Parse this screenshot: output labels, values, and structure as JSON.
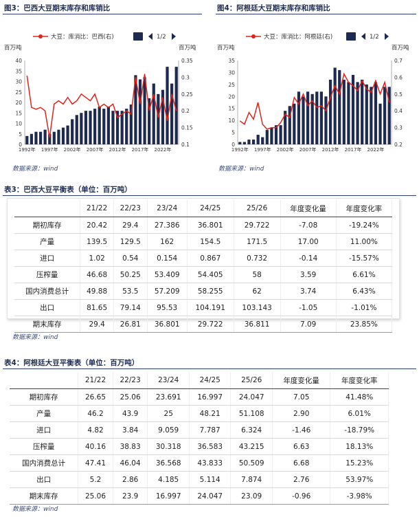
{
  "fig3": {
    "title": "图3：巴西大豆期末库存和库销比",
    "legend_line": "大豆：库消比：巴西(右)",
    "page": "1/2",
    "y_left_unit": "百万吨",
    "y_right_unit": "百万吨",
    "source": "数据来源：wind"
  },
  "fig4": {
    "title": "图4：阿根廷大豆期末库存和库销比",
    "legend_line": "大豆：库消比：阿根廷(右)",
    "page": "1/2",
    "y_left_unit": "百万吨",
    "y_right_unit": "百万吨",
    "source": "数据来源：wind"
  },
  "chart_data": [
    {
      "type": "bar",
      "id": "fig3",
      "x": [
        "1992年",
        "1993年",
        "1994年",
        "1995年",
        "1996年",
        "1997年",
        "1998年",
        "1999年",
        "2000年",
        "2001年",
        "2002年",
        "2003年",
        "2004年",
        "2005年",
        "2006年",
        "2007年",
        "2008年",
        "2009年",
        "2010年",
        "2011年",
        "2012年",
        "2013年",
        "2014年",
        "2015年",
        "2016年",
        "2017年",
        "2018年",
        "2019年",
        "2020年",
        "2021年",
        "2022年",
        "2023年",
        "2024年",
        "2025年"
      ],
      "xticks": [
        "1992年",
        "1997年",
        "2002年",
        "2007年",
        "2012年",
        "2017年",
        "2022年"
      ],
      "series": [
        {
          "name": "",
          "axis": "left",
          "kind": "bar",
          "values": [
            4,
            5,
            6,
            6,
            7,
            5,
            6,
            7,
            8,
            9,
            12,
            14,
            15,
            16,
            16,
            17,
            18,
            17,
            18,
            16,
            16,
            16,
            17,
            19,
            33,
            31,
            32,
            22,
            29,
            24,
            26,
            37,
            29,
            37
          ]
        },
        {
          "name": "大豆：库消比：巴西(右)",
          "axis": "right",
          "kind": "line",
          "values": [
            0.305,
            0.21,
            0.205,
            0.21,
            0.2,
            0.12,
            0.22,
            0.23,
            0.22,
            0.24,
            0.22,
            0.23,
            0.25,
            0.24,
            0.23,
            0.25,
            0.21,
            0.22,
            0.21,
            0.22,
            0.18,
            0.19,
            0.2,
            0.19,
            0.3,
            0.22,
            0.31,
            0.2,
            0.25,
            0.18,
            0.24,
            0.17,
            0.25,
            0.2
          ]
        }
      ],
      "ylim_left": [
        0,
        40
      ],
      "ylim_right": [
        0.1,
        0.35
      ],
      "yticks_left": [
        "0",
        "5",
        "10",
        "15",
        "20",
        "25",
        "30",
        "35",
        "40"
      ],
      "yticks_right": [
        "0.1",
        "0.15",
        "0.2",
        "0.25",
        "0.3",
        "0.35"
      ]
    },
    {
      "type": "bar",
      "id": "fig4",
      "x": [
        "1992年",
        "1993年",
        "1994年",
        "1995年",
        "1996年",
        "1997年",
        "1998年",
        "1999年",
        "2000年",
        "2001年",
        "2002年",
        "2003年",
        "2004年",
        "2005年",
        "2006年",
        "2007年",
        "2008年",
        "2009年",
        "2010年",
        "2011年",
        "2012年",
        "2013年",
        "2014年",
        "2015年",
        "2016年",
        "2017年",
        "2018年",
        "2019年",
        "2020年",
        "2021年",
        "2022年",
        "2023年",
        "2024年",
        "2025年"
      ],
      "xticks": [
        "1992年",
        "1997年",
        "2002年",
        "2007年",
        "2012年",
        "2017年",
        "2022年"
      ],
      "series": [
        {
          "name": "",
          "axis": "left",
          "kind": "bar",
          "values": [
            1,
            1,
            2,
            2,
            4,
            3,
            6,
            7,
            8,
            8,
            14,
            16,
            17,
            22,
            20,
            22,
            21,
            22,
            22,
            20,
            27,
            32,
            31,
            27,
            26,
            29,
            26,
            27,
            25,
            24,
            26,
            17,
            24,
            24
          ]
        },
        {
          "name": "大豆：库消比：阿根廷(右)",
          "axis": "right",
          "kind": "line",
          "values": [
            0.34,
            0.32,
            0.39,
            0.35,
            0.45,
            0.32,
            0.29,
            0.3,
            0.3,
            0.33,
            0.38,
            0.36,
            0.48,
            0.44,
            0.5,
            0.43,
            0.46,
            0.42,
            0.43,
            0.4,
            0.48,
            0.55,
            0.5,
            0.62,
            0.57,
            0.55,
            0.52,
            0.58,
            0.53,
            0.51,
            0.58,
            0.5,
            0.57,
            0.45
          ]
        }
      ],
      "ylim_left": [
        0,
        35
      ],
      "ylim_right": [
        0.2,
        0.7
      ],
      "yticks_left": [
        "0",
        "5",
        "10",
        "15",
        "20",
        "25",
        "30",
        "35"
      ],
      "yticks_right": [
        "0.2",
        "0.3",
        "0.4",
        "0.5",
        "0.6",
        "0.7"
      ]
    }
  ],
  "table3": {
    "title": "表3：巴西大豆平衡表（单位：百万吨）",
    "headers": [
      "",
      "21/22",
      "22/23",
      "23/24",
      "24/25",
      "25/26",
      "年度变化量",
      "年度变化率"
    ],
    "rows": [
      [
        "期初库存",
        "20.42",
        "29.4",
        "27.386",
        "36.801",
        "29.722",
        "-7.08",
        "-19.24%"
      ],
      [
        "产量",
        "139.5",
        "129.5",
        "162",
        "154.5",
        "171.5",
        "17.00",
        "11.00%"
      ],
      [
        "进口",
        "1.02",
        "0.54",
        "0.154",
        "0.867",
        "0.732",
        "-0.14",
        "-15.57%"
      ],
      [
        "压榨量",
        "46.68",
        "50.25",
        "53.409",
        "54.405",
        "58",
        "3.59",
        "6.61%"
      ],
      [
        "国内消费总计",
        "49.88",
        "53.5",
        "57.209",
        "58.255",
        "62",
        "3.74",
        "6.43%"
      ],
      [
        "出口",
        "81.65",
        "79.14",
        "95.53",
        "104.191",
        "103.143",
        "-1.05",
        "-1.01%"
      ],
      [
        "期末库存",
        "29.4",
        "26.81",
        "36.801",
        "29.722",
        "36.811",
        "7.09",
        "23.85%"
      ]
    ],
    "source": "数据来源：wind"
  },
  "table4": {
    "title": "表4：阿根廷大豆平衡表（单位：百万吨）",
    "headers": [
      "",
      "21/22",
      "22/23",
      "23/24",
      "24/25",
      "25/26",
      "年度变化量",
      "年度变化率"
    ],
    "rows": [
      [
        "期初库存",
        "26.65",
        "25.06",
        "23.691",
        "16.997",
        "24.047",
        "7.05",
        "41.48%"
      ],
      [
        "产量",
        "46.2",
        "43.9",
        "25",
        "48.21",
        "51.108",
        "2.90",
        "6.01%"
      ],
      [
        "进口",
        "4.82",
        "3.84",
        "9.059",
        "7.787",
        "6.324",
        "-1.46",
        "-18.79%"
      ],
      [
        "压榨量",
        "40.16",
        "38.83",
        "30.318",
        "36.583",
        "43.215",
        "6.63",
        "18.13%"
      ],
      [
        "国内消费总计",
        "47.41",
        "46.04",
        "36.568",
        "43.833",
        "50.509",
        "6.68",
        "15.23%"
      ],
      [
        "出口",
        "5.2",
        "2.86",
        "4.185",
        "5.114",
        "7.874",
        "2.76",
        "53.97%"
      ],
      [
        "期末库存",
        "25.06",
        "23.9",
        "16.997",
        "24.047",
        "23.09",
        "-0.96",
        "-3.98%"
      ]
    ],
    "source": "数据来源：wind"
  },
  "colors": {
    "bar": "#1e2a4f",
    "line": "#e2231a",
    "accent": "#2c3d75"
  }
}
